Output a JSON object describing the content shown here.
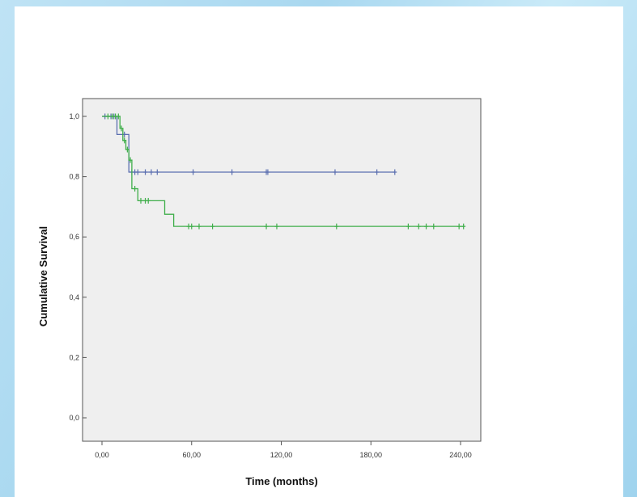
{
  "chart_data": {
    "type": "line",
    "subtype": "kaplan-meier",
    "title": "",
    "xlabel": "Time (months)",
    "ylabel": "Cumulative Survival",
    "xlim": [
      0,
      240
    ],
    "ylim": [
      0,
      1.0
    ],
    "x_ticks": [
      0,
      60,
      120,
      180,
      240
    ],
    "x_tick_labels": [
      "0,00",
      "60,00",
      "120,00",
      "180,00",
      "240,00"
    ],
    "y_ticks": [
      0,
      0.2,
      0.4,
      0.6,
      0.8,
      1.0
    ],
    "y_tick_labels": [
      "0,0",
      "0,2",
      "0,4",
      "0,6",
      "0,8",
      "1,0"
    ],
    "grid": false,
    "background_color": "#efefef",
    "series": [
      {
        "color": "#5b6fb0",
        "steps": [
          [
            0,
            1.0
          ],
          [
            10,
            1.0
          ],
          [
            10,
            0.94
          ],
          [
            18,
            0.94
          ],
          [
            18,
            0.815
          ],
          [
            196,
            0.815
          ]
        ],
        "censored": [
          [
            2,
            1.0
          ],
          [
            6,
            1.0
          ],
          [
            8,
            1.0
          ],
          [
            15,
            0.94
          ],
          [
            20,
            0.815
          ],
          [
            22,
            0.815
          ],
          [
            24,
            0.815
          ],
          [
            29,
            0.815
          ],
          [
            33,
            0.815
          ],
          [
            37,
            0.815
          ],
          [
            61,
            0.815
          ],
          [
            87,
            0.815
          ],
          [
            110,
            0.815
          ],
          [
            111,
            0.815
          ],
          [
            156,
            0.815
          ],
          [
            184,
            0.815
          ],
          [
            196,
            0.815
          ]
        ]
      },
      {
        "color": "#3fae4a",
        "steps": [
          [
            0,
            1.0
          ],
          [
            12,
            1.0
          ],
          [
            12,
            0.96
          ],
          [
            14,
            0.96
          ],
          [
            14,
            0.92
          ],
          [
            16,
            0.92
          ],
          [
            16,
            0.89
          ],
          [
            18,
            0.89
          ],
          [
            18,
            0.855
          ],
          [
            20,
            0.855
          ],
          [
            20,
            0.76
          ],
          [
            24,
            0.76
          ],
          [
            24,
            0.72
          ],
          [
            42,
            0.72
          ],
          [
            42,
            0.675
          ],
          [
            48,
            0.675
          ],
          [
            48,
            0.635
          ],
          [
            242,
            0.635
          ]
        ],
        "censored": [
          [
            4,
            1.0
          ],
          [
            7,
            1.0
          ],
          [
            9,
            1.0
          ],
          [
            11,
            1.0
          ],
          [
            13,
            0.96
          ],
          [
            15,
            0.92
          ],
          [
            17,
            0.89
          ],
          [
            19,
            0.855
          ],
          [
            22,
            0.76
          ],
          [
            26,
            0.72
          ],
          [
            29,
            0.72
          ],
          [
            31,
            0.72
          ],
          [
            58,
            0.635
          ],
          [
            60,
            0.635
          ],
          [
            65,
            0.635
          ],
          [
            74,
            0.635
          ],
          [
            110,
            0.635
          ],
          [
            117,
            0.635
          ],
          [
            157,
            0.635
          ],
          [
            205,
            0.635
          ],
          [
            212,
            0.635
          ],
          [
            217,
            0.635
          ],
          [
            222,
            0.635
          ],
          [
            239,
            0.635
          ],
          [
            242,
            0.635
          ]
        ]
      }
    ]
  }
}
